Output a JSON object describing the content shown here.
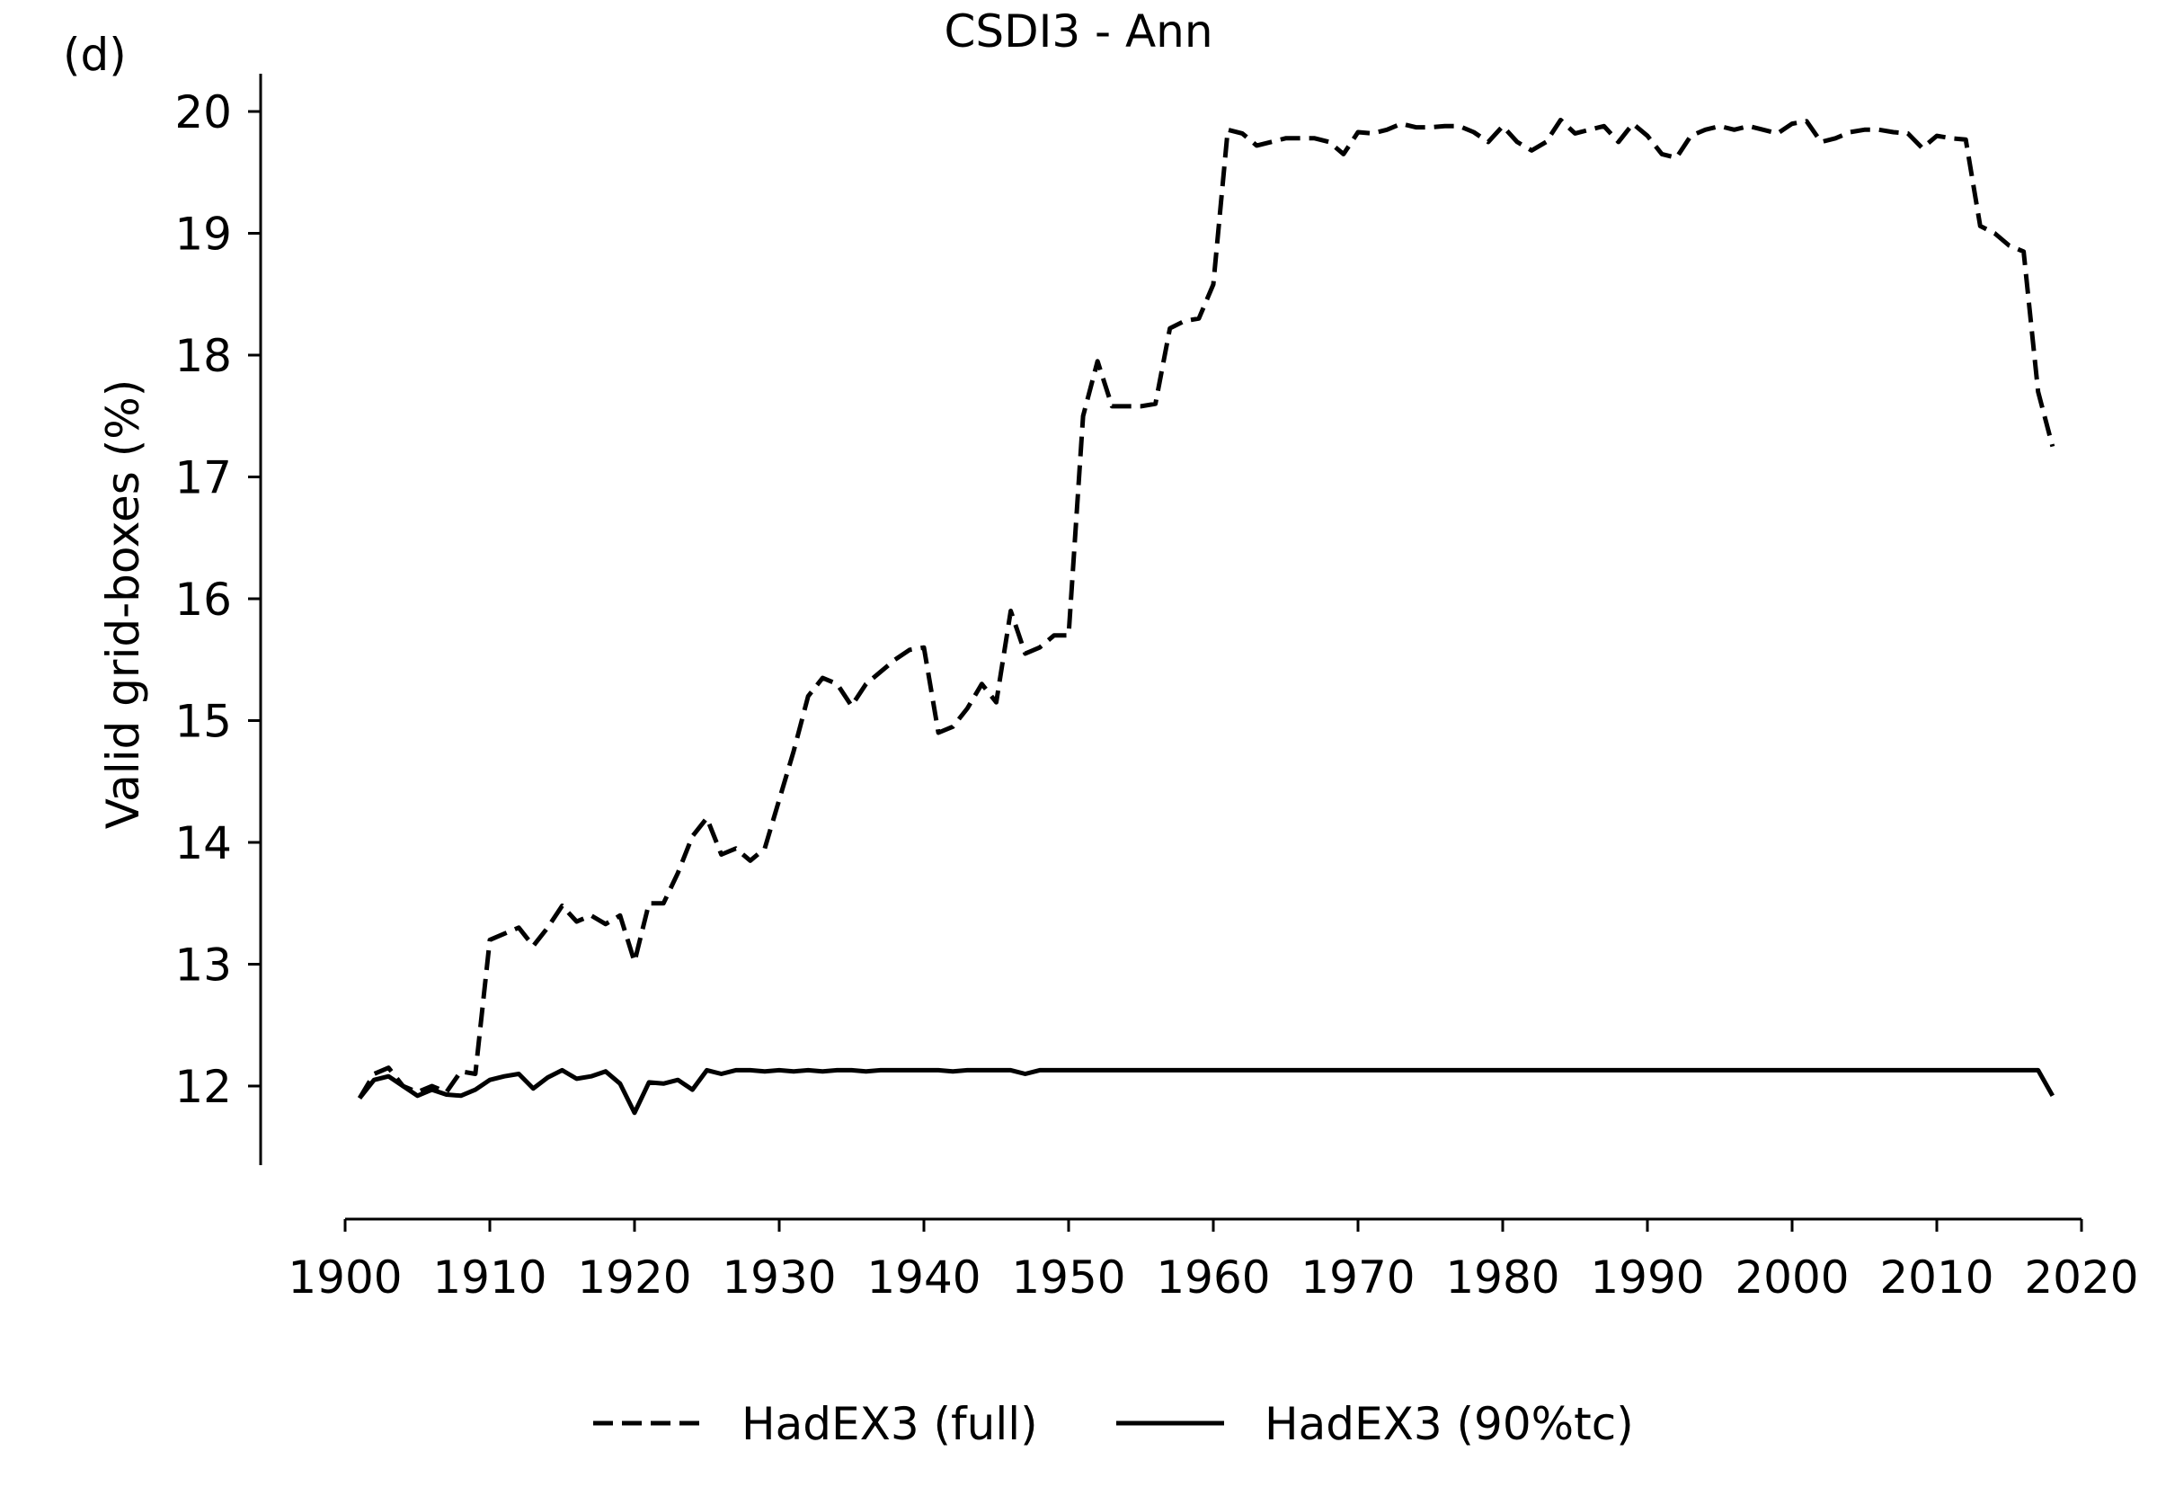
{
  "panel_label": "(d)",
  "chart_data": {
    "type": "line",
    "title": "CSDI3 - Ann",
    "xlabel": "",
    "ylabel": "Valid grid-boxes (%)",
    "xlim": [
      1900,
      2020
    ],
    "ylim": [
      11.35,
      20.35
    ],
    "x_ticks": [
      1900,
      1910,
      1920,
      1930,
      1940,
      1950,
      1960,
      1970,
      1980,
      1990,
      2000,
      2010,
      2020
    ],
    "y_ticks": [
      12,
      13,
      14,
      15,
      16,
      17,
      18,
      19,
      20
    ],
    "grid": false,
    "legend_position": "bottom-center",
    "x": [
      1901,
      1902,
      1903,
      1904,
      1905,
      1906,
      1907,
      1908,
      1909,
      1910,
      1911,
      1912,
      1913,
      1914,
      1915,
      1916,
      1917,
      1918,
      1919,
      1920,
      1921,
      1922,
      1923,
      1924,
      1925,
      1926,
      1927,
      1928,
      1929,
      1930,
      1931,
      1932,
      1933,
      1934,
      1935,
      1936,
      1937,
      1938,
      1939,
      1940,
      1941,
      1942,
      1943,
      1944,
      1945,
      1946,
      1947,
      1948,
      1949,
      1950,
      1951,
      1952,
      1953,
      1954,
      1955,
      1956,
      1957,
      1958,
      1959,
      1960,
      1961,
      1962,
      1963,
      1964,
      1965,
      1966,
      1967,
      1968,
      1969,
      1970,
      1971,
      1972,
      1973,
      1974,
      1975,
      1976,
      1977,
      1978,
      1979,
      1980,
      1981,
      1982,
      1983,
      1984,
      1985,
      1986,
      1987,
      1988,
      1989,
      1990,
      1991,
      1992,
      1993,
      1994,
      1995,
      1996,
      1997,
      1998,
      1999,
      2000,
      2001,
      2002,
      2003,
      2004,
      2005,
      2006,
      2007,
      2008,
      2009,
      2010,
      2011,
      2012,
      2013,
      2014,
      2015,
      2016,
      2017,
      2018
    ],
    "series": [
      {
        "name": "HadEX3 (full)",
        "color": "#000000",
        "dash": "dashed",
        "values": [
          11.9,
          12.1,
          12.15,
          12.0,
          11.95,
          12.0,
          11.95,
          12.12,
          12.1,
          13.2,
          13.25,
          13.3,
          13.15,
          13.3,
          13.48,
          13.35,
          13.4,
          13.33,
          13.4,
          13.02,
          13.5,
          13.5,
          13.75,
          14.05,
          14.2,
          13.9,
          13.95,
          13.85,
          13.95,
          14.35,
          14.75,
          15.2,
          15.35,
          15.3,
          15.12,
          15.3,
          15.4,
          15.5,
          15.58,
          15.6,
          14.9,
          14.95,
          15.1,
          15.3,
          15.15,
          15.9,
          15.55,
          15.6,
          15.7,
          15.7,
          17.5,
          17.95,
          17.58,
          17.58,
          17.58,
          17.6,
          18.22,
          18.28,
          18.3,
          18.58,
          19.85,
          19.82,
          19.72,
          19.75,
          19.78,
          19.78,
          19.78,
          19.75,
          19.65,
          19.83,
          19.82,
          19.85,
          19.9,
          19.87,
          19.87,
          19.88,
          19.88,
          19.83,
          19.75,
          19.88,
          19.75,
          19.68,
          19.75,
          19.93,
          19.82,
          19.85,
          19.88,
          19.75,
          19.9,
          19.8,
          19.65,
          19.62,
          19.8,
          19.85,
          19.88,
          19.85,
          19.88,
          19.85,
          19.82,
          19.9,
          19.92,
          19.75,
          19.78,
          19.83,
          19.85,
          19.85,
          19.83,
          19.82,
          19.7,
          19.8,
          19.78,
          19.77,
          19.06,
          19.0,
          18.9,
          18.85,
          17.7,
          17.25
        ]
      },
      {
        "name": "HadEX3 (90%tc)",
        "color": "#000000",
        "dash": "solid",
        "values": [
          11.9,
          12.05,
          12.08,
          12.0,
          11.92,
          11.97,
          11.93,
          11.92,
          11.97,
          12.05,
          12.08,
          12.1,
          11.98,
          12.07,
          12.13,
          12.06,
          12.08,
          12.12,
          12.02,
          11.78,
          12.03,
          12.02,
          12.05,
          11.97,
          12.13,
          12.1,
          12.13,
          12.13,
          12.12,
          12.13,
          12.12,
          12.13,
          12.12,
          12.13,
          12.13,
          12.12,
          12.13,
          12.13,
          12.13,
          12.13,
          12.13,
          12.12,
          12.13,
          12.13,
          12.13,
          12.13,
          12.1,
          12.13,
          12.13,
          12.13,
          12.13,
          12.13,
          12.13,
          12.13,
          12.13,
          12.13,
          12.13,
          12.13,
          12.13,
          12.13,
          12.13,
          12.13,
          12.13,
          12.13,
          12.13,
          12.13,
          12.13,
          12.13,
          12.13,
          12.13,
          12.13,
          12.13,
          12.13,
          12.13,
          12.13,
          12.13,
          12.13,
          12.13,
          12.13,
          12.13,
          12.13,
          12.13,
          12.13,
          12.13,
          12.13,
          12.13,
          12.13,
          12.13,
          12.13,
          12.13,
          12.13,
          12.13,
          12.13,
          12.13,
          12.13,
          12.13,
          12.13,
          12.13,
          12.13,
          12.13,
          12.13,
          12.13,
          12.13,
          12.13,
          12.13,
          12.13,
          12.13,
          12.13,
          12.13,
          12.13,
          12.13,
          12.13,
          12.13,
          12.13,
          12.13,
          12.13,
          12.13,
          11.92
        ]
      }
    ]
  }
}
